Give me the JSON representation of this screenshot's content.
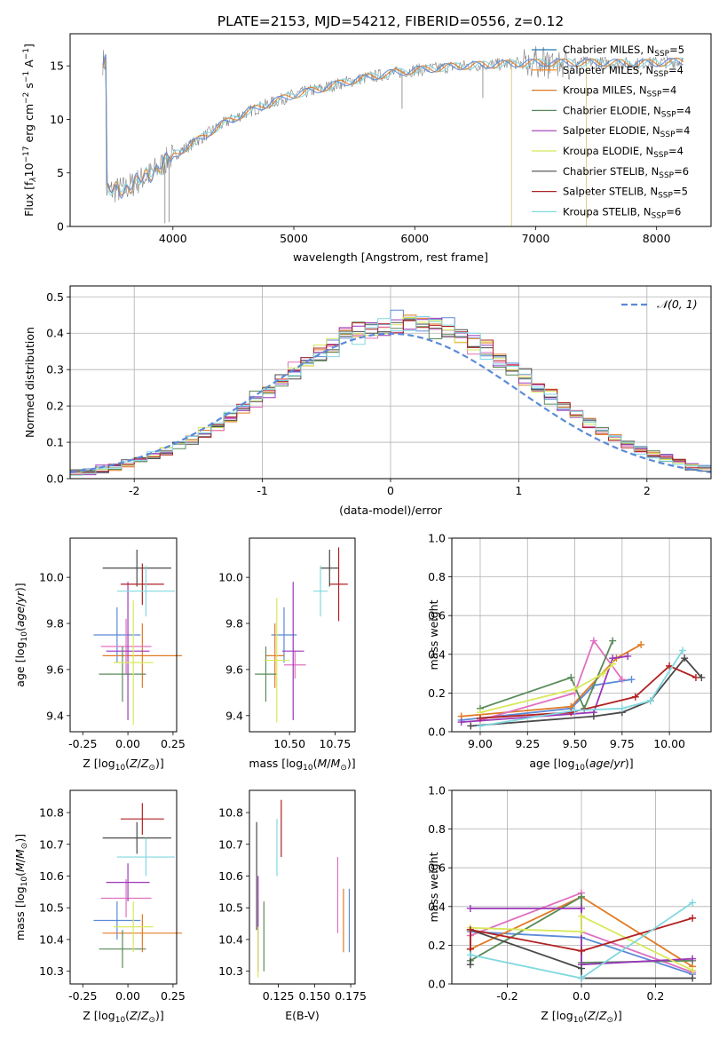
{
  "figure": {
    "title": "PLATE=2153, MJD=54212, FIBERID=0556, z=0.12"
  },
  "chart_data": [
    {
      "id": "spectrum",
      "type": "line",
      "xlabel": "wavelength [Angstrom, rest frame]",
      "ylabel": "Flux [f",
      "ylabel_full": "Flux [f_λ 10^-17 erg cm^-2 s^-1 A^-1]",
      "xlim": [
        3150,
        8450
      ],
      "ylim": [
        0,
        18
      ],
      "xticks": [
        4000,
        5000,
        6000,
        7000,
        8000
      ],
      "yticks": [
        0,
        5,
        10,
        15
      ],
      "grid": false,
      "legend": "right",
      "series": [
        {
          "name": "Chabrier MILES, N_SSP=5",
          "color": "#1f77b4"
        },
        {
          "name": "Salpeter MILES, N_SSP=4",
          "color": "#ff7f0e"
        },
        {
          "name": "Kroupa MILES, N_SSP=4",
          "color": "#d87b26"
        },
        {
          "name": "Chabrier ELODIE, N_SSP=4",
          "color": "#5a8a5a"
        },
        {
          "name": "Salpeter ELODIE, N_SSP=4",
          "color": "#9a37b8"
        },
        {
          "name": "Kroupa ELODIE, N_SSP=4",
          "color": "#d8e85a"
        },
        {
          "name": "Chabrier STELIB, N_SSP=6",
          "color": "#4a4a4a"
        },
        {
          "name": "Salpeter STELIB, N_SSP=5",
          "color": "#b22222"
        },
        {
          "name": "Kroupa STELIB, N_SSP=6",
          "color": "#80d8e0"
        }
      ],
      "data_trend": {
        "x": [
          3450,
          3600,
          3800,
          4000,
          4200,
          4400,
          4600,
          4800,
          5000,
          5200,
          5400,
          5600,
          5800,
          6000,
          6200,
          6400,
          6600,
          6800,
          7000,
          7200,
          7400,
          7600,
          7800,
          8000,
          8200
        ],
        "y": [
          3.3,
          3.5,
          4.8,
          6.6,
          8.0,
          9.5,
          10.6,
          11.5,
          12.3,
          12.8,
          13.4,
          13.9,
          14.3,
          14.6,
          14.8,
          15.0,
          15.1,
          15.2,
          15.3,
          15.3,
          15.3,
          15.3,
          15.2,
          15.3,
          15.4
        ]
      },
      "legend_labels": [
        {
          "prefix": "Chabrier MILES, N",
          "sub": "SSP",
          "suffix": "=5"
        },
        {
          "prefix": "Salpeter MILES, N",
          "sub": "SSP",
          "suffix": "=4"
        },
        {
          "prefix": "Kroupa MILES, N",
          "sub": "SSP",
          "suffix": "=4"
        },
        {
          "prefix": "Chabrier ELODIE, N",
          "sub": "SSP",
          "suffix": "=4"
        },
        {
          "prefix": "Salpeter ELODIE, N",
          "sub": "SSP",
          "suffix": "=4"
        },
        {
          "prefix": "Kroupa ELODIE, N",
          "sub": "SSP",
          "suffix": "=4"
        },
        {
          "prefix": "Chabrier STELIB, N",
          "sub": "SSP",
          "suffix": "=6"
        },
        {
          "prefix": "Salpeter STELIB, N",
          "sub": "SSP",
          "suffix": "=5"
        },
        {
          "prefix": "Kroupa STELIB, N",
          "sub": "SSP",
          "suffix": "=6"
        }
      ]
    },
    {
      "id": "residual_hist",
      "type": "step",
      "xlabel": "(data-model)/error",
      "ylabel": "Normed distribution",
      "xlim": [
        -2.5,
        2.5
      ],
      "ylim": [
        0,
        0.53
      ],
      "xticks": [
        -2,
        -1,
        0,
        1,
        2
      ],
      "yticks": [
        0.0,
        0.1,
        0.2,
        0.3,
        0.4,
        0.5
      ],
      "grid": true,
      "legend": "top-right",
      "reference_curve": {
        "name": "N(0,1)",
        "label": "𝒩(0, 1)",
        "color": "#5b8ad8",
        "style": "dashed"
      },
      "bin_width": 0.1
    },
    {
      "id": "age_vs_Z",
      "type": "errorbar",
      "xlabel": "Z [log10(Z/Z⊙)]",
      "ylabel": "age  [log10(age/yr)]",
      "xlim": [
        -0.32,
        0.27
      ],
      "ylim": [
        9.33,
        10.17
      ],
      "xticks": [
        -0.25,
        0.0,
        0.25
      ],
      "yticks": [
        9.4,
        9.6,
        9.8,
        10.0
      ],
      "points": [
        {
          "x": -0.06,
          "xerr": 0.13,
          "y": 9.75,
          "yerr": 0.12,
          "color": "#5b8ad8"
        },
        {
          "x": 0.08,
          "xerr": 0.22,
          "y": 9.66,
          "yerr": 0.14,
          "color": "#e07b24"
        },
        {
          "x": -0.01,
          "xerr": 0.14,
          "y": 9.7,
          "yerr": 0.12,
          "color": "#e070c0"
        },
        {
          "x": -0.03,
          "xerr": 0.13,
          "y": 9.58,
          "yerr": 0.12,
          "color": "#5a8a5a"
        },
        {
          "x": 0.0,
          "xerr": 0.12,
          "y": 9.68,
          "yerr": 0.3,
          "color": "#9a37b8"
        },
        {
          "x": 0.03,
          "xerr": 0.11,
          "y": 9.63,
          "yerr": 0.27,
          "color": "#d8e85a"
        },
        {
          "x": 0.05,
          "xerr": 0.19,
          "y": 10.04,
          "yerr": 0.08,
          "color": "#4a4a4a"
        },
        {
          "x": 0.08,
          "xerr": 0.12,
          "y": 9.97,
          "yerr": 0.09,
          "color": "#b22222"
        },
        {
          "x": 0.1,
          "xerr": 0.16,
          "y": 9.94,
          "yerr": 0.11,
          "color": "#80d8e0"
        }
      ]
    },
    {
      "id": "age_vs_mass",
      "type": "errorbar",
      "xlabel": "mass [log10(M/M⊙)]",
      "xlim": [
        10.28,
        10.86
      ],
      "ylim": [
        9.33,
        10.17
      ],
      "xticks": [
        10.25,
        10.5,
        10.75
      ],
      "yticks": [
        9.4,
        9.6,
        9.8,
        10.0
      ],
      "points": [
        {
          "x": 10.47,
          "xerr": 0.07,
          "y": 9.75,
          "yerr": 0.12,
          "color": "#5b8ad8"
        },
        {
          "x": 10.42,
          "xerr": 0.05,
          "y": 9.66,
          "yerr": 0.14,
          "color": "#e07b24"
        },
        {
          "x": 10.53,
          "xerr": 0.06,
          "y": 9.62,
          "yerr": 0.06,
          "color": "#e070c0"
        },
        {
          "x": 10.37,
          "xerr": 0.06,
          "y": 9.58,
          "yerr": 0.12,
          "color": "#5a8a5a"
        },
        {
          "x": 10.52,
          "xerr": 0.06,
          "y": 9.68,
          "yerr": 0.3,
          "color": "#9a37b8"
        },
        {
          "x": 10.43,
          "xerr": 0.07,
          "y": 9.64,
          "yerr": 0.27,
          "color": "#d8e85a"
        },
        {
          "x": 10.72,
          "xerr": 0.05,
          "y": 10.04,
          "yerr": 0.08,
          "color": "#4a4a4a"
        },
        {
          "x": 10.77,
          "xerr": 0.05,
          "y": 9.97,
          "yerr": 0.16,
          "color": "#b22222"
        },
        {
          "x": 10.67,
          "xerr": 0.04,
          "y": 9.94,
          "yerr": 0.11,
          "color": "#80d8e0"
        }
      ]
    },
    {
      "id": "massweight_vs_age",
      "type": "line",
      "xlabel": "age  [log10(age/yr)]",
      "ylabel": "mass weight",
      "xlim": [
        8.85,
        10.22
      ],
      "ylim": [
        0.0,
        1.0
      ],
      "xticks": [
        9.0,
        9.25,
        9.5,
        9.75,
        10.0
      ],
      "yticks": [
        0.0,
        0.2,
        0.4,
        0.6,
        0.8,
        1.0
      ],
      "grid": true,
      "series": [
        {
          "color": "#5b8ad8",
          "x": [
            8.9,
            9.48,
            9.6,
            9.8
          ],
          "y": [
            0.06,
            0.12,
            0.24,
            0.27
          ]
        },
        {
          "color": "#e07b24",
          "x": [
            8.9,
            9.48,
            9.72,
            9.85
          ],
          "y": [
            0.08,
            0.13,
            0.38,
            0.45
          ]
        },
        {
          "color": "#e070c0",
          "x": [
            9.0,
            9.5,
            9.6,
            9.75
          ],
          "y": [
            0.06,
            0.2,
            0.47,
            0.27
          ]
        },
        {
          "color": "#5a8a5a",
          "x": [
            9.0,
            9.48,
            9.55,
            9.7
          ],
          "y": [
            0.12,
            0.28,
            0.12,
            0.47
          ]
        },
        {
          "color": "#9a37b8",
          "x": [
            8.9,
            9.6,
            9.7,
            9.78
          ],
          "y": [
            0.05,
            0.1,
            0.38,
            0.39
          ]
        },
        {
          "color": "#d8e85a",
          "x": [
            9.0,
            9.5,
            9.65,
            9.7
          ],
          "y": [
            0.1,
            0.22,
            0.3,
            0.35
          ]
        },
        {
          "color": "#4a4a4a",
          "x": [
            8.95,
            9.6,
            9.75,
            9.9,
            10.08,
            10.17
          ],
          "y": [
            0.03,
            0.08,
            0.1,
            0.16,
            0.38,
            0.28
          ]
        },
        {
          "color": "#b22222",
          "x": [
            9.0,
            9.48,
            9.82,
            10.0,
            10.14
          ],
          "y": [
            0.07,
            0.1,
            0.18,
            0.34,
            0.28
          ]
        },
        {
          "color": "#80d8e0",
          "x": [
            9.0,
            9.5,
            9.75,
            9.9,
            10.07
          ],
          "y": [
            0.03,
            0.11,
            0.12,
            0.16,
            0.42
          ]
        }
      ]
    },
    {
      "id": "mass_vs_Z",
      "type": "errorbar",
      "xlabel": "Z [log10(Z/Z⊙)]",
      "ylabel": "mass [log10(M/M⊙)]",
      "xlim": [
        -0.32,
        0.27
      ],
      "ylim": [
        10.26,
        10.87
      ],
      "xticks": [
        -0.25,
        0.0,
        0.25
      ],
      "yticks": [
        10.3,
        10.4,
        10.5,
        10.6,
        10.7,
        10.8
      ],
      "points": [
        {
          "x": -0.06,
          "xerr": 0.13,
          "y": 10.46,
          "yerr": 0.06,
          "color": "#5b8ad8"
        },
        {
          "x": 0.08,
          "xerr": 0.22,
          "y": 10.42,
          "yerr": 0.06,
          "color": "#e07b24"
        },
        {
          "x": -0.01,
          "xerr": 0.14,
          "y": 10.53,
          "yerr": 0.06,
          "color": "#e070c0"
        },
        {
          "x": -0.03,
          "xerr": 0.13,
          "y": 10.37,
          "yerr": 0.06,
          "color": "#5a8a5a"
        },
        {
          "x": 0.0,
          "xerr": 0.12,
          "y": 10.58,
          "yerr": 0.06,
          "color": "#9a37b8"
        },
        {
          "x": 0.03,
          "xerr": 0.11,
          "y": 10.44,
          "yerr": 0.08,
          "color": "#d8e85a"
        },
        {
          "x": 0.05,
          "xerr": 0.19,
          "y": 10.72,
          "yerr": 0.05,
          "color": "#4a4a4a"
        },
        {
          "x": 0.08,
          "xerr": 0.12,
          "y": 10.78,
          "yerr": 0.05,
          "color": "#b22222"
        },
        {
          "x": 0.1,
          "xerr": 0.16,
          "y": 10.66,
          "yerr": 0.06,
          "color": "#80d8e0"
        }
      ]
    },
    {
      "id": "mass_vs_ebv",
      "type": "errorbar",
      "xlabel": "E(B-V)",
      "xlim": [
        0.105,
        0.178
      ],
      "ylim": [
        10.26,
        10.87
      ],
      "xticks": [
        0.125,
        0.15,
        0.175
      ],
      "yticks": [
        10.3,
        10.4,
        10.5,
        10.6,
        10.7,
        10.8
      ],
      "points": [
        {
          "x": 0.174,
          "xerr": 0.0,
          "y": 10.46,
          "yerr": 0.1,
          "color": "#5b8ad8"
        },
        {
          "x": 0.17,
          "xerr": 0.0,
          "y": 10.46,
          "yerr": 0.1,
          "color": "#e07b24"
        },
        {
          "x": 0.166,
          "xerr": 0.0,
          "y": 10.54,
          "yerr": 0.12,
          "color": "#e070c0"
        },
        {
          "x": 0.115,
          "xerr": 0.0,
          "y": 10.41,
          "yerr": 0.11,
          "color": "#5a8a5a"
        },
        {
          "x": 0.111,
          "xerr": 0.0,
          "y": 10.45,
          "yerr": 0.15,
          "color": "#9a37b8"
        },
        {
          "x": 0.111,
          "xerr": 0.0,
          "y": 10.36,
          "yerr": 0.08,
          "color": "#d8e85a"
        },
        {
          "x": 0.11,
          "xerr": 0.0,
          "y": 10.6,
          "yerr": 0.17,
          "color": "#4a4a4a"
        },
        {
          "x": 0.127,
          "xerr": 0.0,
          "y": 10.75,
          "yerr": 0.09,
          "color": "#b22222"
        },
        {
          "x": 0.124,
          "xerr": 0.0,
          "y": 10.69,
          "yerr": 0.09,
          "color": "#80d8e0"
        }
      ]
    },
    {
      "id": "massweight_vs_Z",
      "type": "line",
      "xlabel": "Z [log10(Z/Z⊙)]",
      "ylabel": "mass weight",
      "xlim": [
        -0.35,
        0.35
      ],
      "ylim": [
        0.0,
        1.0
      ],
      "xticks": [
        -0.2,
        0.0,
        0.2
      ],
      "yticks": [
        0.0,
        0.2,
        0.4,
        0.6,
        0.8,
        1.0
      ],
      "grid": true,
      "series": [
        {
          "color": "#5b8ad8",
          "x": [
            -0.3,
            0.0,
            0.0,
            0.3
          ],
          "y": [
            0.27,
            0.24,
            0.24,
            0.05
          ]
        },
        {
          "color": "#e07b24",
          "x": [
            -0.3,
            0.0,
            0.3
          ],
          "y": [
            0.18,
            0.45,
            0.09
          ]
        },
        {
          "color": "#e070c0",
          "x": [
            -0.3,
            0.0,
            0.0,
            0.3
          ],
          "y": [
            0.25,
            0.47,
            0.27,
            0.06
          ]
        },
        {
          "color": "#5a8a5a",
          "x": [
            -0.3,
            -0.3,
            0.0,
            0.0,
            0.3
          ],
          "y": [
            0.28,
            0.12,
            0.45,
            0.11,
            0.12
          ]
        },
        {
          "color": "#9a37b8",
          "x": [
            -0.3,
            0.0,
            0.0,
            0.3
          ],
          "y": [
            0.39,
            0.39,
            0.1,
            0.13
          ]
        },
        {
          "color": "#d8e85a",
          "x": [
            -0.3,
            0.0,
            0.0,
            0.3
          ],
          "y": [
            0.29,
            0.27,
            0.35,
            0.07
          ]
        },
        {
          "color": "#4a4a4a",
          "x": [
            -0.3,
            -0.3,
            0.0,
            0.0,
            0.3
          ],
          "y": [
            0.1,
            0.28,
            0.08,
            0.03,
            0.03
          ]
        },
        {
          "color": "#b22222",
          "x": [
            -0.3,
            -0.3,
            0.0,
            0.3
          ],
          "y": [
            0.18,
            0.28,
            0.17,
            0.34
          ]
        },
        {
          "color": "#80d8e0",
          "x": [
            -0.3,
            0.0,
            0.3
          ],
          "y": [
            0.15,
            0.03,
            0.42
          ]
        }
      ]
    }
  ]
}
